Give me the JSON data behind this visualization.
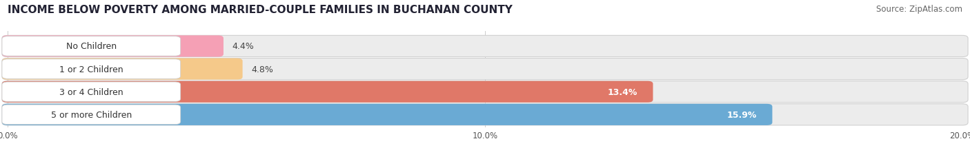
{
  "title": "INCOME BELOW POVERTY AMONG MARRIED-COUPLE FAMILIES IN BUCHANAN COUNTY",
  "source": "Source: ZipAtlas.com",
  "categories": [
    "No Children",
    "1 or 2 Children",
    "3 or 4 Children",
    "5 or more Children"
  ],
  "values": [
    4.4,
    4.8,
    13.4,
    15.9
  ],
  "bar_colors": [
    "#f5a0b5",
    "#f5c98a",
    "#e07868",
    "#6aaad4"
  ],
  "value_inside": [
    false,
    false,
    true,
    true
  ],
  "xlim": [
    0,
    20.0
  ],
  "xticks": [
    0.0,
    10.0,
    20.0
  ],
  "xticklabels": [
    "0.0%",
    "10.0%",
    "20.0%"
  ],
  "background_color": "#ffffff",
  "bar_bg_color": "#ececec",
  "title_fontsize": 11,
  "label_fontsize": 9,
  "value_fontsize": 9,
  "source_fontsize": 8.5
}
